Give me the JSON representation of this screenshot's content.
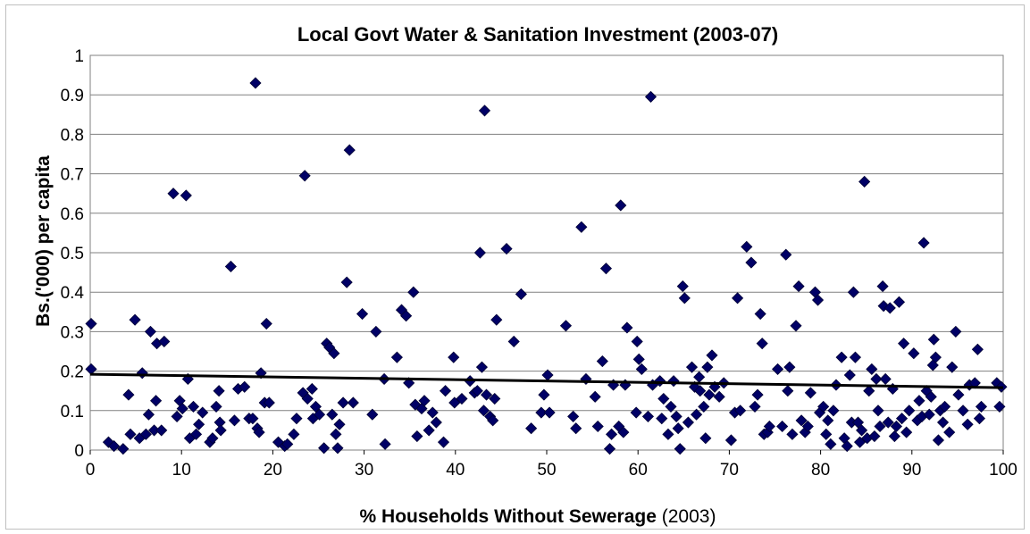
{
  "chart_data": {
    "type": "scatter",
    "title": "Local Govt Water & Sanitation Investment (2003-07)",
    "xlabel_bold": "% Households Without Sewerage",
    "xlabel_regular": " (2003)",
    "ylabel": "Bs.('000) per capita",
    "xlim": [
      0,
      100
    ],
    "ylim": [
      0,
      1
    ],
    "xticks": [
      "0",
      "10",
      "20",
      "30",
      "40",
      "50",
      "60",
      "70",
      "80",
      "90",
      "100"
    ],
    "yticks": [
      "0",
      "0.1",
      "0.2",
      "0.3",
      "0.4",
      "0.5",
      "0.6",
      "0.7",
      "0.8",
      "0.9",
      "1"
    ],
    "grid": true,
    "legend": "none",
    "marker_color": "#000066",
    "trendline": {
      "x": [
        0,
        100
      ],
      "y": [
        0.192,
        0.158
      ],
      "color": "#000000"
    },
    "points": [
      [
        0.1,
        0.32
      ],
      [
        0.1,
        0.205
      ],
      [
        2,
        0.02
      ],
      [
        2.6,
        0.01
      ],
      [
        3.6,
        0.003
      ],
      [
        4.2,
        0.14
      ],
      [
        4.4,
        0.04
      ],
      [
        4.9,
        0.33
      ],
      [
        5.4,
        0.03
      ],
      [
        5.7,
        0.195
      ],
      [
        6.1,
        0.04
      ],
      [
        6.4,
        0.09
      ],
      [
        6.6,
        0.3
      ],
      [
        7.0,
        0.05
      ],
      [
        7.2,
        0.125
      ],
      [
        7.3,
        0.27
      ],
      [
        7.8,
        0.05
      ],
      [
        8.1,
        0.275
      ],
      [
        9.1,
        0.65
      ],
      [
        9.5,
        0.085
      ],
      [
        9.8,
        0.125
      ],
      [
        10.1,
        0.105
      ],
      [
        10.5,
        0.645
      ],
      [
        10.7,
        0.18
      ],
      [
        10.9,
        0.03
      ],
      [
        11.3,
        0.11
      ],
      [
        11.6,
        0.04
      ],
      [
        11.9,
        0.065
      ],
      [
        12.3,
        0.095
      ],
      [
        13.1,
        0.02
      ],
      [
        13.4,
        0.03
      ],
      [
        13.8,
        0.11
      ],
      [
        14.1,
        0.15
      ],
      [
        14.2,
        0.07
      ],
      [
        14.3,
        0.05
      ],
      [
        15.4,
        0.465
      ],
      [
        15.8,
        0.075
      ],
      [
        16.2,
        0.155
      ],
      [
        16.9,
        0.16
      ],
      [
        17.4,
        0.08
      ],
      [
        17.8,
        0.08
      ],
      [
        18.1,
        0.93
      ],
      [
        18.3,
        0.055
      ],
      [
        18.5,
        0.045
      ],
      [
        18.7,
        0.195
      ],
      [
        19.1,
        0.12
      ],
      [
        19.3,
        0.32
      ],
      [
        19.6,
        0.12
      ],
      [
        20.6,
        0.02
      ],
      [
        21.3,
        0.01
      ],
      [
        21.6,
        0.015
      ],
      [
        22.3,
        0.04
      ],
      [
        22.6,
        0.08
      ],
      [
        23.3,
        0.145
      ],
      [
        23.5,
        0.695
      ],
      [
        23.8,
        0.13
      ],
      [
        24.3,
        0.155
      ],
      [
        24.4,
        0.08
      ],
      [
        24.7,
        0.11
      ],
      [
        25.1,
        0.09
      ],
      [
        25.6,
        0.005
      ],
      [
        25.9,
        0.27
      ],
      [
        26.2,
        0.26
      ],
      [
        26.5,
        0.09
      ],
      [
        26.7,
        0.245
      ],
      [
        26.9,
        0.04
      ],
      [
        27.1,
        0.005
      ],
      [
        27.3,
        0.065
      ],
      [
        27.7,
        0.12
      ],
      [
        28.1,
        0.425
      ],
      [
        28.4,
        0.76
      ],
      [
        28.8,
        0.12
      ],
      [
        29.8,
        0.345
      ],
      [
        30.9,
        0.09
      ],
      [
        31.3,
        0.3
      ],
      [
        32.2,
        0.18
      ],
      [
        32.3,
        0.015
      ],
      [
        33.6,
        0.235
      ],
      [
        34.1,
        0.355
      ],
      [
        34.6,
        0.34
      ],
      [
        34.9,
        0.17
      ],
      [
        35.4,
        0.4
      ],
      [
        35.6,
        0.115
      ],
      [
        35.8,
        0.035
      ],
      [
        36.3,
        0.105
      ],
      [
        36.6,
        0.125
      ],
      [
        37.1,
        0.05
      ],
      [
        37.5,
        0.095
      ],
      [
        37.9,
        0.07
      ],
      [
        38.7,
        0.02
      ],
      [
        38.9,
        0.15
      ],
      [
        39.8,
        0.235
      ],
      [
        39.9,
        0.12
      ],
      [
        40.7,
        0.13
      ],
      [
        41.6,
        0.175
      ],
      [
        42.1,
        0.145
      ],
      [
        42.4,
        0.15
      ],
      [
        42.7,
        0.5
      ],
      [
        42.9,
        0.21
      ],
      [
        43.1,
        0.1
      ],
      [
        43.2,
        0.86
      ],
      [
        43.4,
        0.14
      ],
      [
        43.8,
        0.085
      ],
      [
        44.1,
        0.075
      ],
      [
        44.3,
        0.13
      ],
      [
        44.5,
        0.33
      ],
      [
        45.6,
        0.51
      ],
      [
        46.4,
        0.275
      ],
      [
        47.2,
        0.395
      ],
      [
        48.3,
        0.055
      ],
      [
        49.4,
        0.095
      ],
      [
        49.7,
        0.14
      ],
      [
        50.1,
        0.19
      ],
      [
        50.3,
        0.095
      ],
      [
        52.1,
        0.315
      ],
      [
        52.9,
        0.085
      ],
      [
        53.2,
        0.055
      ],
      [
        53.8,
        0.565
      ],
      [
        54.3,
        0.18
      ],
      [
        55.3,
        0.135
      ],
      [
        55.6,
        0.06
      ],
      [
        56.1,
        0.225
      ],
      [
        56.5,
        0.46
      ],
      [
        56.9,
        0.003
      ],
      [
        57.1,
        0.04
      ],
      [
        57.3,
        0.165
      ],
      [
        57.9,
        0.06
      ],
      [
        58.1,
        0.62
      ],
      [
        58.4,
        0.045
      ],
      [
        58.6,
        0.165
      ],
      [
        58.8,
        0.31
      ],
      [
        59.8,
        0.095
      ],
      [
        59.9,
        0.275
      ],
      [
        60.1,
        0.23
      ],
      [
        60.4,
        0.205
      ],
      [
        61.1,
        0.085
      ],
      [
        61.4,
        0.895
      ],
      [
        61.6,
        0.165
      ],
      [
        62.4,
        0.175
      ],
      [
        62.6,
        0.08
      ],
      [
        62.8,
        0.13
      ],
      [
        63.3,
        0.04
      ],
      [
        63.6,
        0.11
      ],
      [
        63.9,
        0.175
      ],
      [
        64.2,
        0.085
      ],
      [
        64.4,
        0.055
      ],
      [
        64.6,
        0.003
      ],
      [
        64.9,
        0.415
      ],
      [
        65.1,
        0.385
      ],
      [
        65.5,
        0.07
      ],
      [
        65.9,
        0.21
      ],
      [
        66.2,
        0.16
      ],
      [
        66.4,
        0.09
      ],
      [
        66.7,
        0.185
      ],
      [
        66.8,
        0.15
      ],
      [
        67.2,
        0.11
      ],
      [
        67.4,
        0.03
      ],
      [
        67.6,
        0.21
      ],
      [
        67.8,
        0.14
      ],
      [
        68.1,
        0.24
      ],
      [
        68.4,
        0.16
      ],
      [
        68.9,
        0.135
      ],
      [
        69.4,
        0.17
      ],
      [
        70.2,
        0.025
      ],
      [
        70.6,
        0.095
      ],
      [
        70.9,
        0.385
      ],
      [
        71.2,
        0.1
      ],
      [
        71.9,
        0.515
      ],
      [
        72.4,
        0.475
      ],
      [
        72.8,
        0.11
      ],
      [
        73.1,
        0.14
      ],
      [
        73.4,
        0.345
      ],
      [
        73.6,
        0.27
      ],
      [
        73.8,
        0.04
      ],
      [
        74.2,
        0.045
      ],
      [
        74.4,
        0.06
      ],
      [
        75.3,
        0.205
      ],
      [
        75.8,
        0.06
      ],
      [
        76.2,
        0.495
      ],
      [
        76.4,
        0.15
      ],
      [
        76.6,
        0.21
      ],
      [
        76.9,
        0.04
      ],
      [
        77.3,
        0.315
      ],
      [
        77.6,
        0.415
      ],
      [
        77.9,
        0.075
      ],
      [
        78.3,
        0.045
      ],
      [
        78.6,
        0.06
      ],
      [
        78.9,
        0.145
      ],
      [
        79.4,
        0.4
      ],
      [
        79.7,
        0.38
      ],
      [
        79.9,
        0.095
      ],
      [
        80.3,
        0.11
      ],
      [
        80.6,
        0.04
      ],
      [
        80.8,
        0.075
      ],
      [
        81.1,
        0.015
      ],
      [
        81.4,
        0.1
      ],
      [
        81.7,
        0.165
      ],
      [
        82.3,
        0.235
      ],
      [
        82.6,
        0.03
      ],
      [
        82.9,
        0.01
      ],
      [
        83.2,
        0.19
      ],
      [
        83.4,
        0.07
      ],
      [
        83.6,
        0.4
      ],
      [
        83.8,
        0.235
      ],
      [
        84.1,
        0.07
      ],
      [
        84.3,
        0.02
      ],
      [
        84.5,
        0.05
      ],
      [
        84.8,
        0.68
      ],
      [
        85.1,
        0.03
      ],
      [
        85.3,
        0.15
      ],
      [
        85.6,
        0.205
      ],
      [
        85.9,
        0.035
      ],
      [
        86.1,
        0.18
      ],
      [
        86.3,
        0.1
      ],
      [
        86.5,
        0.06
      ],
      [
        86.8,
        0.415
      ],
      [
        86.9,
        0.365
      ],
      [
        87.1,
        0.18
      ],
      [
        87.4,
        0.07
      ],
      [
        87.6,
        0.36
      ],
      [
        87.9,
        0.155
      ],
      [
        88.1,
        0.035
      ],
      [
        88.3,
        0.06
      ],
      [
        88.6,
        0.375
      ],
      [
        88.9,
        0.08
      ],
      [
        89.1,
        0.27
      ],
      [
        89.4,
        0.045
      ],
      [
        89.7,
        0.1
      ],
      [
        90.2,
        0.245
      ],
      [
        90.6,
        0.075
      ],
      [
        90.8,
        0.125
      ],
      [
        91.1,
        0.085
      ],
      [
        91.3,
        0.525
      ],
      [
        91.6,
        0.15
      ],
      [
        91.9,
        0.09
      ],
      [
        92.1,
        0.135
      ],
      [
        92.3,
        0.215
      ],
      [
        92.4,
        0.28
      ],
      [
        92.6,
        0.235
      ],
      [
        92.9,
        0.025
      ],
      [
        93.1,
        0.1
      ],
      [
        93.4,
        0.07
      ],
      [
        93.6,
        0.11
      ],
      [
        94.1,
        0.045
      ],
      [
        94.4,
        0.21
      ],
      [
        94.8,
        0.3
      ],
      [
        95.1,
        0.14
      ],
      [
        95.6,
        0.1
      ],
      [
        96.1,
        0.065
      ],
      [
        96.3,
        0.165
      ],
      [
        96.9,
        0.17
      ],
      [
        97.2,
        0.255
      ],
      [
        97.4,
        0.08
      ],
      [
        97.6,
        0.11
      ],
      [
        99.3,
        0.17
      ],
      [
        99.6,
        0.11
      ],
      [
        99.8,
        0.16
      ]
    ]
  }
}
